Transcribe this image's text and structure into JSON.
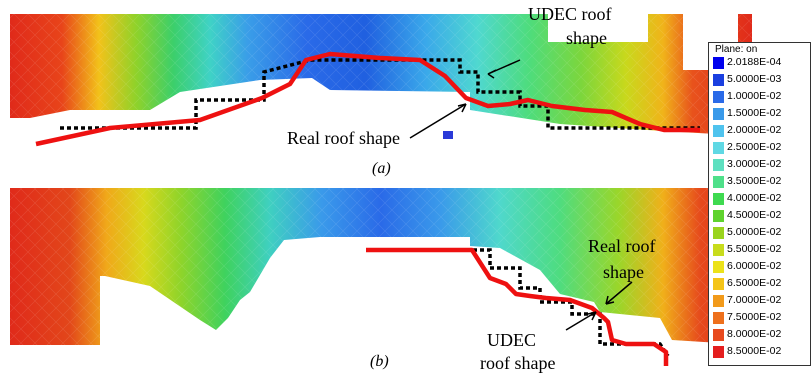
{
  "panels": [
    {
      "id": "a",
      "caption": "(a)"
    },
    {
      "id": "b",
      "caption": "(b)"
    }
  ],
  "annotations": {
    "a_udec_line1": "UDEC roof",
    "a_udec_line2": "shape",
    "a_real": "Real roof shape",
    "b_real_line1": "Real roof",
    "b_real_line2": "shape",
    "b_udec_line1": "UDEC",
    "b_udec_line2": "roof shape"
  },
  "legend": {
    "title": "Plane: on",
    "items": [
      {
        "label": "2.0188E-04",
        "color": "#0000ee"
      },
      {
        "label": "5.0000E-03",
        "color": "#1a3fe0"
      },
      {
        "label": "1.0000E-02",
        "color": "#2a6ae8"
      },
      {
        "label": "1.5000E-02",
        "color": "#3a9aea"
      },
      {
        "label": "2.0000E-02",
        "color": "#4fc3ee"
      },
      {
        "label": "2.5000E-02",
        "color": "#5fd8e4"
      },
      {
        "label": "3.0000E-02",
        "color": "#5ee0c0"
      },
      {
        "label": "3.5000E-02",
        "color": "#4fe08a"
      },
      {
        "label": "4.0000E-02",
        "color": "#3fda50"
      },
      {
        "label": "4.5000E-02",
        "color": "#5fd32e"
      },
      {
        "label": "5.0000E-02",
        "color": "#9ad41e"
      },
      {
        "label": "5.5000E-02",
        "color": "#c8dc1c"
      },
      {
        "label": "6.0000E-02",
        "color": "#ece21a"
      },
      {
        "label": "6.5000E-02",
        "color": "#f4c418"
      },
      {
        "label": "7.0000E-02",
        "color": "#f29a1a"
      },
      {
        "label": "7.5000E-02",
        "color": "#ee701c"
      },
      {
        "label": "8.0000E-02",
        "color": "#e84a1e"
      },
      {
        "label": "8.5000E-02",
        "color": "#e41e1e"
      }
    ]
  },
  "colors": {
    "real_roof_line": "#ee1111",
    "udec_roof_line": "#000000"
  }
}
